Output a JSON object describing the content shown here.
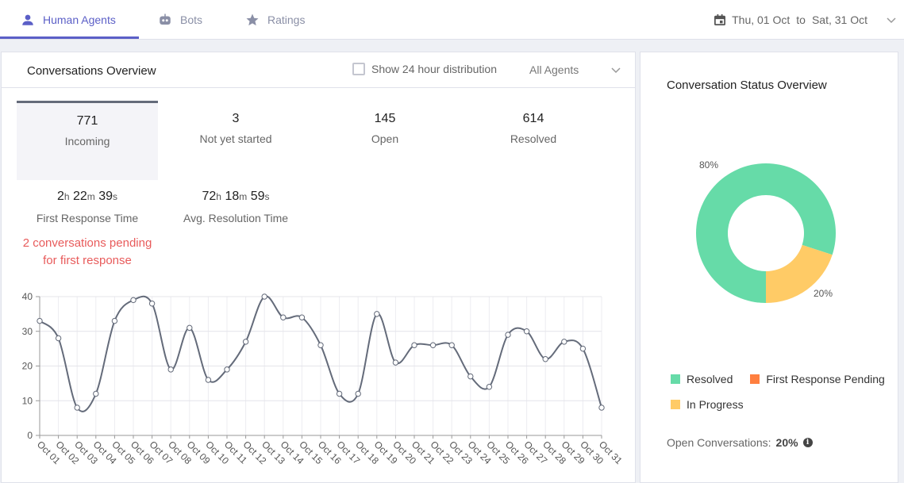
{
  "tabs": [
    {
      "label": "Human Agents",
      "icon": "person-icon"
    },
    {
      "label": "Bots",
      "icon": "bot-icon"
    },
    {
      "label": "Ratings",
      "icon": "star-icon"
    }
  ],
  "date_range": {
    "from": "Thu, 01 Oct",
    "to_word": "to",
    "to": "Sat, 31 Oct"
  },
  "overview": {
    "title": "Conversations Overview",
    "toggle_label": "Show 24 hour distribution",
    "agent_filter": "All Agents",
    "stats": [
      {
        "value": "771",
        "label": "Incoming"
      },
      {
        "value": "3",
        "label": "Not yet started"
      },
      {
        "value": "145",
        "label": "Open"
      },
      {
        "value": "614",
        "label": "Resolved"
      }
    ],
    "first_response": {
      "h": "2",
      "m": "22",
      "s": "39",
      "label": "First Response Time"
    },
    "resolution": {
      "h": "72",
      "m": "18",
      "s": "59",
      "label": "Avg. Resolution Time"
    },
    "units": {
      "h": "h",
      "m": "m",
      "s": "s"
    },
    "pending_line1": "2 conversations pending",
    "pending_line2": "for first response"
  },
  "status": {
    "title": "Conversation Status Overview",
    "slices": [
      {
        "label": "80%",
        "value": 80,
        "color": "#66dba8"
      },
      {
        "label": "20%",
        "value": 20,
        "color": "#ffcb66"
      }
    ],
    "legend": [
      {
        "label": "Resolved",
        "color": "#66dba8"
      },
      {
        "label": "First Response Pending",
        "color": "#ff7f3f"
      },
      {
        "label": "In Progress",
        "color": "#ffcb66"
      }
    ],
    "open_label": "Open Conversations:",
    "open_value": "20%"
  },
  "chart_data": {
    "type": "line",
    "categories": [
      "Oct 01",
      "Oct 02",
      "Oct 03",
      "Oct 04",
      "Oct 05",
      "Oct 06",
      "Oct 07",
      "Oct 08",
      "Oct 09",
      "Oct 10",
      "Oct 11",
      "Oct 12",
      "Oct 13",
      "Oct 14",
      "Oct 15",
      "Oct 16",
      "Oct 17",
      "Oct 18",
      "Oct 19",
      "Oct 20",
      "Oct 21",
      "Oct 22",
      "Oct 23",
      "Oct 24",
      "Oct 25",
      "Oct 26",
      "Oct 27",
      "Oct 28",
      "Oct 29",
      "Oct 30",
      "Oct 31"
    ],
    "values": [
      33,
      28,
      8,
      12,
      33,
      39,
      38,
      19,
      31,
      16,
      19,
      27,
      40,
      34,
      34,
      26,
      12,
      12,
      35,
      21,
      26,
      26,
      26,
      17,
      14,
      29,
      30,
      22,
      27,
      25,
      8
    ],
    "yticks": [
      0,
      10,
      20,
      30,
      40
    ],
    "ylim": [
      0,
      40
    ],
    "grid": true,
    "line_color": "#646b7a"
  }
}
